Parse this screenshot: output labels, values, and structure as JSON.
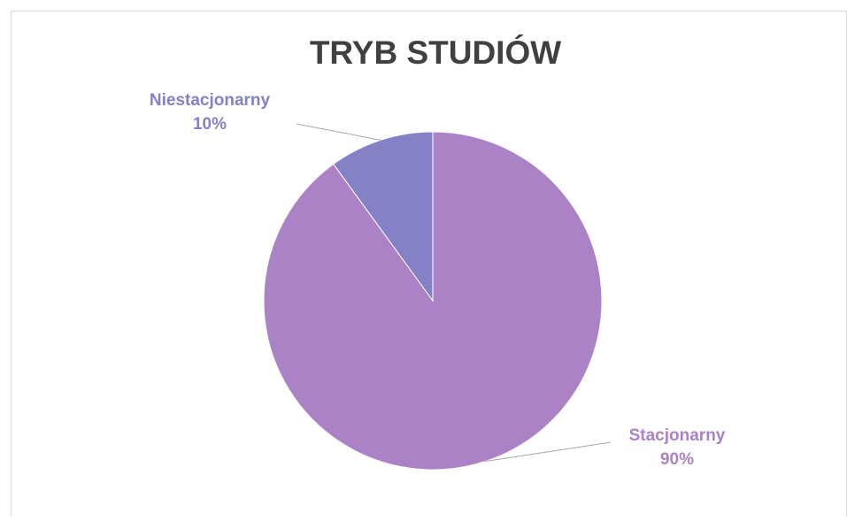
{
  "chart_data": {
    "type": "pie",
    "title": "TRYB STUDIÓW",
    "categories": [
      "Stacjonarny",
      "Niestacjonarny"
    ],
    "values": [
      90,
      10
    ],
    "value_labels": [
      "90%",
      "10%"
    ],
    "colors": [
      "#ab82c5",
      "#8481c6"
    ]
  }
}
